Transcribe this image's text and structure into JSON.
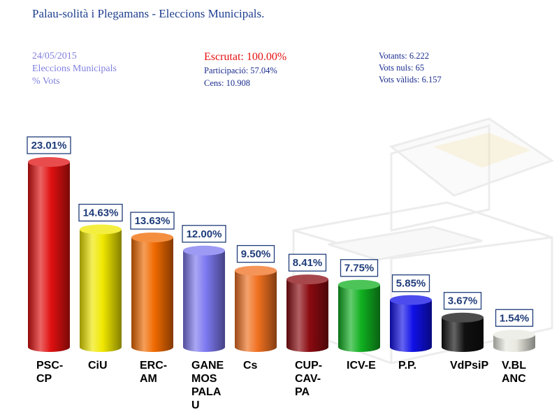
{
  "title": "Palau-solità i Plegamans - Eleccions Municipals.",
  "meta_left": {
    "date": "24/05/2015",
    "election": "Eleccions Municipals",
    "unit": "% Vots"
  },
  "meta_mid": {
    "escrutat": "Escrutat: 100.00%",
    "participacio": "Participació: 57.04%",
    "cens": "Cens: 10.908"
  },
  "meta_right": {
    "votants": "Votants: 6.222",
    "nuls": "Vots nuls: 65",
    "valids": "Vots vàlids: 6.157"
  },
  "chart_data": {
    "type": "bar",
    "categories": [
      "PSC-CP",
      "CiU",
      "ERC-AM",
      "GANEMOS PALAU",
      "Cs",
      "CUP-CAV-PA",
      "ICV-E",
      "P.P.",
      "VdPsiP",
      "V.BLANC"
    ],
    "category_lines": [
      [
        "PSC-",
        "CP"
      ],
      [
        "CiU"
      ],
      [
        "ERC-",
        "AM"
      ],
      [
        "GANE",
        "MOS",
        "PALA",
        "U"
      ],
      [
        "Cs"
      ],
      [
        "CUP-",
        "CAV-",
        "PA"
      ],
      [
        "ICV-E"
      ],
      [
        "P.P."
      ],
      [
        "VdPsiP"
      ],
      [
        "V.BL",
        "ANC"
      ]
    ],
    "values": [
      23.01,
      14.63,
      13.63,
      12.0,
      9.5,
      8.41,
      7.75,
      5.85,
      3.67,
      1.54
    ],
    "value_labels": [
      "23.01%",
      "14.63%",
      "13.63%",
      "12.00%",
      "9.50%",
      "8.41%",
      "7.75%",
      "5.85%",
      "3.67%",
      "1.54%"
    ],
    "colors": [
      "#e01010",
      "#f0e800",
      "#f06a00",
      "#7c78f0",
      "#f07020",
      "#8a0a10",
      "#10b020",
      "#1010e8",
      "#101010",
      "#e8e8e0"
    ],
    "ylim": [
      0,
      23.01
    ],
    "grid": false,
    "legend": "none"
  }
}
